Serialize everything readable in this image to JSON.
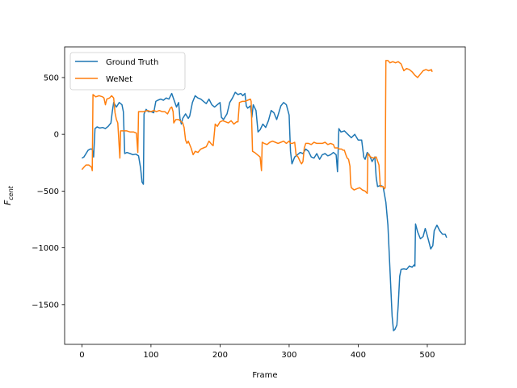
{
  "chart_data": {
    "type": "line",
    "title": "",
    "xlabel": "Frame",
    "ylabel_main": "F",
    "ylabel_sub": "cent",
    "xlim": [
      -25,
      555
    ],
    "ylim": [
      -1850,
      770
    ],
    "xticks": [
      0,
      100,
      200,
      300,
      400,
      500
    ],
    "yticks": [
      -1500,
      -1000,
      -500,
      0,
      500
    ],
    "ytick_labels": [
      "−1500",
      "−1000",
      "−500",
      "0",
      "500"
    ],
    "grid": false,
    "legend_position": "upper-left",
    "series": [
      {
        "name": "Ground Truth",
        "color": "#1f77b4",
        "points": [
          [
            0,
            -210
          ],
          [
            3,
            -200
          ],
          [
            6,
            -170
          ],
          [
            9,
            -140
          ],
          [
            12,
            -130
          ],
          [
            15,
            -130
          ],
          [
            17,
            -200
          ],
          [
            19,
            50
          ],
          [
            22,
            65
          ],
          [
            26,
            55
          ],
          [
            30,
            60
          ],
          [
            34,
            50
          ],
          [
            38,
            70
          ],
          [
            42,
            100
          ],
          [
            44,
            200
          ],
          [
            46,
            280
          ],
          [
            48,
            260
          ],
          [
            50,
            240
          ],
          [
            54,
            280
          ],
          [
            58,
            260
          ],
          [
            60,
            200
          ],
          [
            62,
            -170
          ],
          [
            65,
            -160
          ],
          [
            70,
            -170
          ],
          [
            74,
            -180
          ],
          [
            78,
            -175
          ],
          [
            82,
            -190
          ],
          [
            85,
            -300
          ],
          [
            87,
            -420
          ],
          [
            89,
            -440
          ],
          [
            90,
            180
          ],
          [
            93,
            220
          ],
          [
            96,
            200
          ],
          [
            100,
            200
          ],
          [
            104,
            190
          ],
          [
            107,
            290
          ],
          [
            110,
            300
          ],
          [
            114,
            310
          ],
          [
            118,
            300
          ],
          [
            122,
            320
          ],
          [
            126,
            310
          ],
          [
            130,
            360
          ],
          [
            134,
            290
          ],
          [
            137,
            240
          ],
          [
            140,
            280
          ],
          [
            142,
            140
          ],
          [
            144,
            90
          ],
          [
            146,
            140
          ],
          [
            150,
            180
          ],
          [
            154,
            140
          ],
          [
            156,
            160
          ],
          [
            160,
            280
          ],
          [
            164,
            340
          ],
          [
            168,
            320
          ],
          [
            172,
            310
          ],
          [
            176,
            290
          ],
          [
            180,
            270
          ],
          [
            184,
            310
          ],
          [
            188,
            260
          ],
          [
            192,
            240
          ],
          [
            196,
            260
          ],
          [
            200,
            280
          ],
          [
            202,
            150
          ],
          [
            205,
            130
          ],
          [
            210,
            180
          ],
          [
            214,
            280
          ],
          [
            218,
            320
          ],
          [
            222,
            370
          ],
          [
            226,
            350
          ],
          [
            230,
            360
          ],
          [
            233,
            340
          ],
          [
            236,
            360
          ],
          [
            238,
            250
          ],
          [
            240,
            230
          ],
          [
            244,
            250
          ],
          [
            246,
            150
          ],
          [
            248,
            260
          ],
          [
            252,
            210
          ],
          [
            255,
            20
          ],
          [
            258,
            40
          ],
          [
            262,
            90
          ],
          [
            266,
            60
          ],
          [
            270,
            120
          ],
          [
            274,
            210
          ],
          [
            278,
            190
          ],
          [
            282,
            130
          ],
          [
            285,
            190
          ],
          [
            288,
            250
          ],
          [
            292,
            280
          ],
          [
            296,
            260
          ],
          [
            300,
            170
          ],
          [
            302,
            -150
          ],
          [
            304,
            -260
          ],
          [
            308,
            -200
          ],
          [
            312,
            -180
          ],
          [
            316,
            -160
          ],
          [
            320,
            -170
          ],
          [
            324,
            -130
          ],
          [
            328,
            -150
          ],
          [
            332,
            -200
          ],
          [
            336,
            -210
          ],
          [
            340,
            -170
          ],
          [
            344,
            -220
          ],
          [
            348,
            -180
          ],
          [
            352,
            -170
          ],
          [
            356,
            -190
          ],
          [
            360,
            -180
          ],
          [
            364,
            -160
          ],
          [
            368,
            -180
          ],
          [
            370,
            -330
          ],
          [
            372,
            50
          ],
          [
            375,
            20
          ],
          [
            380,
            30
          ],
          [
            385,
            0
          ],
          [
            390,
            -30
          ],
          [
            395,
            0
          ],
          [
            400,
            -50
          ],
          [
            405,
            -50
          ],
          [
            408,
            -200
          ],
          [
            410,
            -220
          ],
          [
            413,
            -160
          ],
          [
            416,
            -180
          ],
          [
            420,
            -240
          ],
          [
            424,
            -200
          ],
          [
            426,
            -380
          ],
          [
            428,
            -460
          ],
          [
            432,
            -450
          ],
          [
            436,
            -460
          ],
          [
            440,
            -600
          ],
          [
            443,
            -800
          ],
          [
            446,
            -1200
          ],
          [
            449,
            -1600
          ],
          [
            451,
            -1730
          ],
          [
            453,
            -1720
          ],
          [
            456,
            -1680
          ],
          [
            458,
            -1500
          ],
          [
            460,
            -1250
          ],
          [
            462,
            -1190
          ],
          [
            466,
            -1185
          ],
          [
            470,
            -1190
          ],
          [
            474,
            -1160
          ],
          [
            478,
            -1170
          ],
          [
            481,
            -1150
          ],
          [
            482,
            -1160
          ],
          [
            483,
            -790
          ],
          [
            486,
            -860
          ],
          [
            490,
            -920
          ],
          [
            494,
            -900
          ],
          [
            497,
            -830
          ],
          [
            499,
            -870
          ],
          [
            502,
            -940
          ],
          [
            505,
            -1010
          ],
          [
            508,
            -980
          ],
          [
            510,
            -850
          ],
          [
            514,
            -800
          ],
          [
            518,
            -850
          ],
          [
            522,
            -880
          ],
          [
            526,
            -880
          ],
          [
            528,
            -910
          ]
        ]
      },
      {
        "name": "WeNet",
        "color": "#ff7f0e",
        "points": [
          [
            0,
            -310
          ],
          [
            3,
            -290
          ],
          [
            6,
            -270
          ],
          [
            10,
            -270
          ],
          [
            14,
            -290
          ],
          [
            15,
            -320
          ],
          [
            16,
            350
          ],
          [
            20,
            330
          ],
          [
            25,
            340
          ],
          [
            30,
            330
          ],
          [
            32,
            320
          ],
          [
            34,
            260
          ],
          [
            36,
            310
          ],
          [
            40,
            320
          ],
          [
            43,
            340
          ],
          [
            46,
            320
          ],
          [
            48,
            190
          ],
          [
            50,
            130
          ],
          [
            52,
            100
          ],
          [
            55,
            -210
          ],
          [
            56,
            30
          ],
          [
            60,
            30
          ],
          [
            65,
            30
          ],
          [
            70,
            20
          ],
          [
            75,
            20
          ],
          [
            79,
            10
          ],
          [
            81,
            -160
          ],
          [
            82,
            200
          ],
          [
            86,
            200
          ],
          [
            90,
            200
          ],
          [
            95,
            210
          ],
          [
            100,
            200
          ],
          [
            104,
            210
          ],
          [
            108,
            200
          ],
          [
            112,
            210
          ],
          [
            116,
            200
          ],
          [
            120,
            200
          ],
          [
            124,
            180
          ],
          [
            128,
            230
          ],
          [
            130,
            240
          ],
          [
            132,
            200
          ],
          [
            133,
            100
          ],
          [
            136,
            130
          ],
          [
            140,
            130
          ],
          [
            144,
            110
          ],
          [
            146,
            100
          ],
          [
            148,
            60
          ],
          [
            150,
            -50
          ],
          [
            152,
            -80
          ],
          [
            154,
            -60
          ],
          [
            158,
            -120
          ],
          [
            161,
            -180
          ],
          [
            164,
            -150
          ],
          [
            168,
            -160
          ],
          [
            172,
            -130
          ],
          [
            176,
            -120
          ],
          [
            180,
            -110
          ],
          [
            184,
            -60
          ],
          [
            188,
            -90
          ],
          [
            190,
            -100
          ],
          [
            193,
            90
          ],
          [
            196,
            70
          ],
          [
            200,
            110
          ],
          [
            204,
            120
          ],
          [
            208,
            110
          ],
          [
            212,
            100
          ],
          [
            216,
            120
          ],
          [
            220,
            90
          ],
          [
            224,
            110
          ],
          [
            226,
            110
          ],
          [
            228,
            280
          ],
          [
            232,
            290
          ],
          [
            236,
            290
          ],
          [
            240,
            300
          ],
          [
            244,
            310
          ],
          [
            245,
            290
          ],
          [
            247,
            -150
          ],
          [
            250,
            -160
          ],
          [
            254,
            -180
          ],
          [
            258,
            -200
          ],
          [
            260,
            -320
          ],
          [
            261,
            -70
          ],
          [
            264,
            -80
          ],
          [
            268,
            -90
          ],
          [
            272,
            -70
          ],
          [
            276,
            -60
          ],
          [
            280,
            -70
          ],
          [
            284,
            -80
          ],
          [
            288,
            -70
          ],
          [
            292,
            -60
          ],
          [
            296,
            -80
          ],
          [
            300,
            -60
          ],
          [
            302,
            -80
          ],
          [
            305,
            -80
          ],
          [
            308,
            -70
          ],
          [
            310,
            -180
          ],
          [
            313,
            -200
          ],
          [
            316,
            -240
          ],
          [
            318,
            -260
          ],
          [
            320,
            -240
          ],
          [
            322,
            -120
          ],
          [
            324,
            -80
          ],
          [
            328,
            -80
          ],
          [
            332,
            -90
          ],
          [
            336,
            -70
          ],
          [
            340,
            -80
          ],
          [
            344,
            -80
          ],
          [
            348,
            -80
          ],
          [
            352,
            -70
          ],
          [
            356,
            -90
          ],
          [
            360,
            -80
          ],
          [
            364,
            -90
          ],
          [
            366,
            -120
          ],
          [
            370,
            -120
          ],
          [
            373,
            -130
          ],
          [
            376,
            -130
          ],
          [
            378,
            -140
          ],
          [
            380,
            -140
          ],
          [
            382,
            -180
          ],
          [
            384,
            -210
          ],
          [
            386,
            -220
          ],
          [
            388,
            -280
          ],
          [
            389,
            -430
          ],
          [
            390,
            -470
          ],
          [
            394,
            -490
          ],
          [
            398,
            -480
          ],
          [
            402,
            -470
          ],
          [
            406,
            -490
          ],
          [
            410,
            -500
          ],
          [
            413,
            -520
          ],
          [
            414,
            -170
          ],
          [
            418,
            -200
          ],
          [
            422,
            -210
          ],
          [
            426,
            -200
          ],
          [
            430,
            -270
          ],
          [
            432,
            -460
          ],
          [
            436,
            -460
          ],
          [
            438,
            -480
          ],
          [
            439,
            -470
          ],
          [
            440,
            650
          ],
          [
            443,
            650
          ],
          [
            446,
            630
          ],
          [
            450,
            640
          ],
          [
            454,
            630
          ],
          [
            458,
            640
          ],
          [
            462,
            620
          ],
          [
            466,
            560
          ],
          [
            470,
            580
          ],
          [
            474,
            570
          ],
          [
            478,
            550
          ],
          [
            482,
            520
          ],
          [
            486,
            500
          ],
          [
            490,
            530
          ],
          [
            494,
            560
          ],
          [
            498,
            570
          ],
          [
            502,
            560
          ],
          [
            506,
            570
          ],
          [
            507,
            550
          ]
        ]
      }
    ]
  }
}
